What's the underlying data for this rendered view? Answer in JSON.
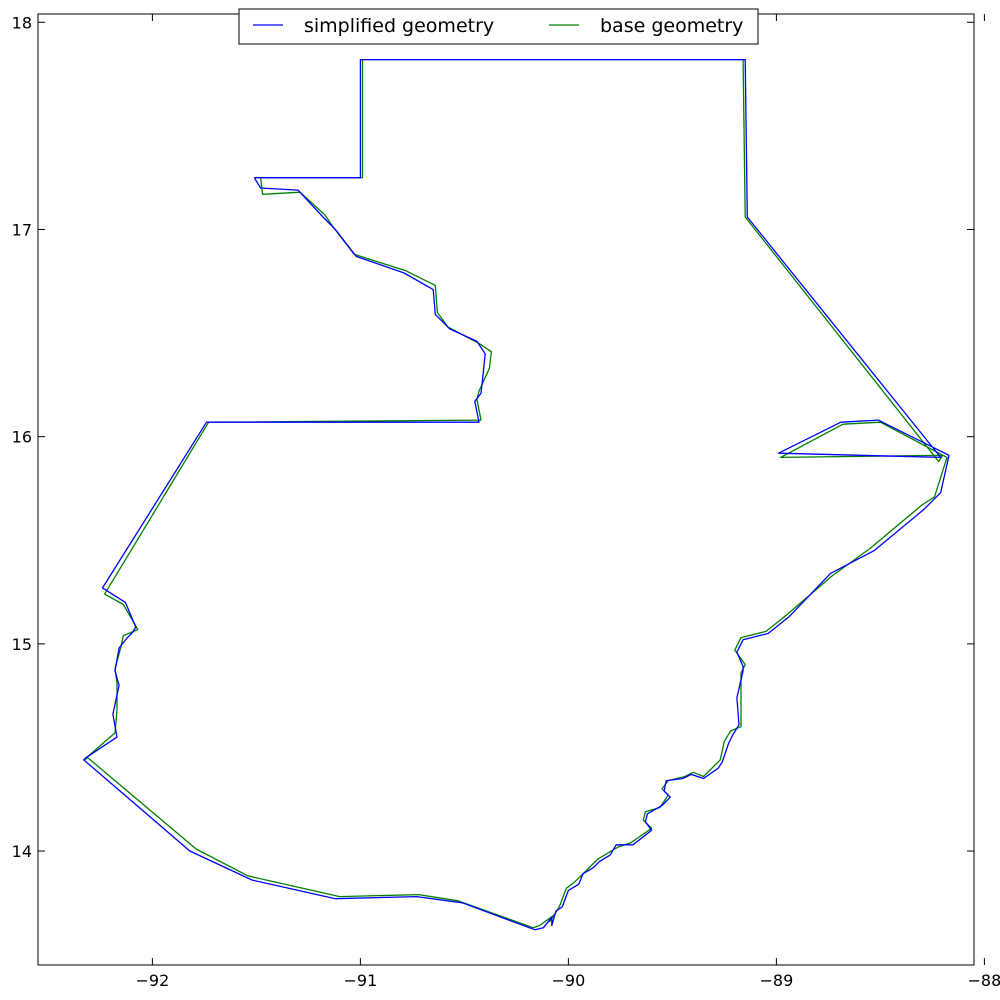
{
  "chart_data": {
    "type": "line",
    "title": "",
    "xlabel": "",
    "ylabel": "",
    "xlim": [
      -92.55,
      -88.05
    ],
    "ylim": [
      13.45,
      18.04
    ],
    "xticks": [
      -92,
      -91,
      -90,
      -89,
      -88
    ],
    "yticks": [
      14,
      15,
      16,
      17,
      18
    ],
    "xtick_labels": [
      "−92",
      "−91",
      "−90",
      "−89",
      "−88"
    ],
    "ytick_labels": [
      "14",
      "15",
      "16",
      "17",
      "18"
    ],
    "grid": false,
    "legend": {
      "placement": "upper-center",
      "ncol": 2
    },
    "series": [
      {
        "name": "simplified geometry",
        "color": "#0000ff",
        "x": [
          -91.51,
          -91.0,
          -91.0,
          -89.15,
          -89.14,
          -88.21,
          -88.21,
          -88.99,
          -88.69,
          -88.51,
          -88.17,
          -88.21,
          -88.29,
          -88.53,
          -88.74,
          -88.94,
          -89.04,
          -89.16,
          -89.19,
          -89.16,
          -89.16,
          -89.19,
          -89.18,
          -89.21,
          -89.23,
          -89.26,
          -89.28,
          -89.35,
          -89.41,
          -89.45,
          -89.53,
          -89.54,
          -89.51,
          -89.55,
          -89.62,
          -89.63,
          -89.6,
          -89.69,
          -89.77,
          -89.8,
          -89.85,
          -89.88,
          -89.93,
          -89.95,
          -90.0,
          -90.03,
          -90.06,
          -90.08,
          -90.08,
          -90.12,
          -90.16,
          -90.51,
          -90.73,
          -91.12,
          -91.52,
          -91.82,
          -92.33,
          -92.32,
          -92.17,
          -92.19,
          -92.16,
          -92.18,
          -92.16,
          -92.12,
          -92.1,
          -92.08,
          -92.13,
          -92.24,
          -91.74,
          -90.43,
          -90.45,
          -90.42,
          -90.41,
          -90.4,
          -90.44,
          -90.57,
          -90.64,
          -90.65,
          -90.79,
          -91.02,
          -91.12,
          -91.18,
          -91.3,
          -91.48,
          -91.51
        ],
        "y": [
          17.25,
          17.25,
          17.82,
          17.82,
          17.06,
          15.9,
          15.9,
          15.92,
          16.07,
          16.08,
          15.91,
          15.73,
          15.65,
          15.45,
          15.34,
          15.13,
          15.05,
          15.02,
          14.96,
          14.89,
          14.87,
          14.74,
          14.61,
          14.56,
          14.52,
          14.43,
          14.4,
          14.35,
          14.37,
          14.35,
          14.34,
          14.29,
          14.26,
          14.22,
          14.18,
          14.14,
          14.1,
          14.03,
          14.03,
          13.98,
          13.95,
          13.92,
          13.89,
          13.84,
          13.81,
          13.73,
          13.71,
          13.64,
          13.68,
          13.63,
          13.62,
          13.75,
          13.78,
          13.77,
          13.86,
          14.0,
          14.44,
          14.45,
          14.55,
          14.66,
          14.8,
          14.87,
          14.98,
          15.03,
          15.05,
          15.08,
          15.2,
          15.27,
          16.07,
          16.07,
          16.17,
          16.21,
          16.3,
          16.4,
          16.46,
          16.52,
          16.59,
          16.71,
          16.79,
          16.87,
          17.0,
          17.06,
          17.19,
          17.2,
          17.25
        ]
      },
      {
        "name": "base geometry",
        "color": "#008000",
        "x": [
          -91.48,
          -90.99,
          -90.99,
          -89.16,
          -89.15,
          -88.22,
          -88.2,
          -88.98,
          -88.68,
          -88.5,
          -88.18,
          -88.24,
          -88.3,
          -88.55,
          -88.73,
          -88.95,
          -89.05,
          -89.17,
          -89.2,
          -89.15,
          -89.17,
          -89.17,
          -89.17,
          -89.22,
          -89.25,
          -89.27,
          -89.3,
          -89.35,
          -89.4,
          -89.44,
          -89.52,
          -89.55,
          -89.52,
          -89.56,
          -89.63,
          -89.64,
          -89.6,
          -89.7,
          -89.76,
          -89.81,
          -89.86,
          -89.89,
          -89.92,
          -89.97,
          -90.01,
          -90.04,
          -90.05,
          -90.09,
          -90.07,
          -90.14,
          -90.17,
          -90.53,
          -90.72,
          -91.1,
          -91.54,
          -91.79,
          -92.31,
          -92.33,
          -92.18,
          -92.17,
          -92.17,
          -92.18,
          -92.15,
          -92.14,
          -92.09,
          -92.07,
          -92.14,
          -92.23,
          -91.73,
          -90.42,
          -90.44,
          -90.43,
          -90.38,
          -90.37,
          -90.43,
          -90.58,
          -90.63,
          -90.64,
          -90.78,
          -91.03,
          -91.13,
          -91.17,
          -91.29,
          -91.47,
          -91.48
        ],
        "y": [
          17.25,
          17.25,
          17.82,
          17.82,
          17.06,
          15.88,
          15.91,
          15.9,
          16.06,
          16.07,
          15.9,
          15.71,
          15.67,
          15.46,
          15.33,
          15.14,
          15.06,
          15.03,
          14.97,
          14.9,
          14.86,
          14.75,
          14.6,
          14.58,
          14.53,
          14.44,
          14.41,
          14.36,
          14.38,
          14.36,
          14.34,
          14.3,
          14.27,
          14.21,
          14.19,
          14.15,
          14.11,
          14.04,
          14.02,
          13.99,
          13.96,
          13.93,
          13.9,
          13.85,
          13.82,
          13.74,
          13.72,
          13.66,
          13.69,
          13.64,
          13.63,
          13.76,
          13.79,
          13.78,
          13.88,
          14.01,
          14.45,
          14.44,
          14.57,
          14.68,
          14.81,
          14.88,
          14.99,
          15.04,
          15.06,
          15.07,
          15.19,
          15.24,
          16.07,
          16.08,
          16.18,
          16.22,
          16.33,
          16.41,
          16.45,
          16.53,
          16.6,
          16.73,
          16.8,
          16.88,
          17.01,
          17.07,
          17.18,
          17.17,
          17.25
        ]
      }
    ]
  }
}
